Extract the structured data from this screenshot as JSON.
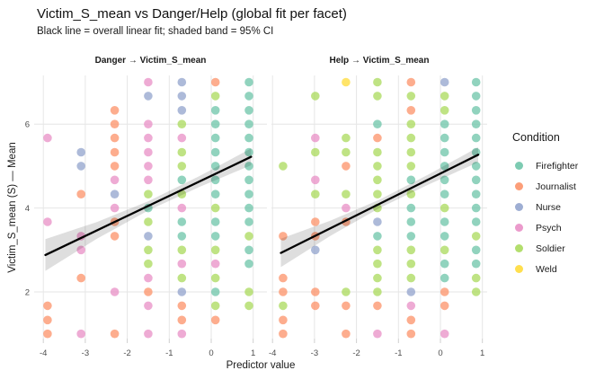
{
  "title": "Victim_S_mean vs Danger/Help (global fit per facet)",
  "subtitle": "Black line = overall linear fit; shaded band = 95% CI",
  "chart_data": {
    "type": "scatter",
    "xlabel": "Predictor value",
    "ylabel": "Victim_S_mean (S) — Mean",
    "x_ticks": [
      -4,
      -3,
      -2,
      -1,
      0,
      1
    ],
    "y_ticks": [
      2,
      4,
      6
    ],
    "xlim": [
      -4.22,
      1.33
    ],
    "ylim": [
      0.89,
      7.16
    ],
    "grid": "major-only",
    "point_opacity": 0.72,
    "point_radius": 4.8,
    "fit_color": "#000000",
    "band_color": "#000000",
    "band_opacity": 0.13,
    "grid_color": "#e6e6e6",
    "tick_label_color": "#4d4d4d",
    "condition_codes": {
      "F": "Firefighter",
      "J": "Journalist",
      "N": "Nurse",
      "P": "Psych",
      "S": "Soldier",
      "W": "Weld"
    },
    "palette": {
      "F": "#66C2A5",
      "J": "#FC8D62",
      "N": "#8DA0CB",
      "P": "#E78AC3",
      "S": "#A6D854",
      "W": "#FFD92F"
    },
    "legend": {
      "title": "Condition",
      "position": "right",
      "items": [
        {
          "label": "Firefighter",
          "color": "#66C2A5"
        },
        {
          "label": "Journalist",
          "color": "#FC8D62"
        },
        {
          "label": "Nurse",
          "color": "#8DA0CB"
        },
        {
          "label": "Psych",
          "color": "#E78AC3"
        },
        {
          "label": "Soldier",
          "color": "#A6D854"
        },
        {
          "label": "Weld",
          "color": "#FFD92F"
        }
      ]
    },
    "facets": [
      {
        "label": "Danger → Victim_S_mean",
        "fit_line": {
          "x1": -3.95,
          "y1": 2.88,
          "x2": 0.95,
          "y2": 5.22
        },
        "ci_halfwidths": {
          "fractions": [
            0,
            0.25,
            0.5,
            0.75,
            1
          ],
          "values": [
            0.38,
            0.2,
            0.11,
            0.13,
            0.2
          ]
        },
        "points": [
          [
            -3.9,
            5.67,
            "P"
          ],
          [
            -3.9,
            3.67,
            "P"
          ],
          [
            -3.9,
            1.67,
            "J"
          ],
          [
            -3.9,
            1.33,
            "J"
          ],
          [
            -3.9,
            1.0,
            "J"
          ],
          [
            -3.1,
            5.33,
            "N"
          ],
          [
            -3.1,
            5.0,
            "N"
          ],
          [
            -3.1,
            4.33,
            "J"
          ],
          [
            -3.1,
            3.33,
            "P"
          ],
          [
            -3.1,
            3.0,
            "P"
          ],
          [
            -3.1,
            2.33,
            "J"
          ],
          [
            -3.1,
            1.0,
            "P"
          ],
          [
            -2.3,
            6.33,
            "J"
          ],
          [
            -2.3,
            6.0,
            "J"
          ],
          [
            -2.3,
            5.67,
            "J"
          ],
          [
            -2.3,
            5.33,
            "J"
          ],
          [
            -2.3,
            5.0,
            "J"
          ],
          [
            -2.3,
            4.67,
            "P"
          ],
          [
            -2.3,
            4.33,
            "N"
          ],
          [
            -2.3,
            4.0,
            "P"
          ],
          [
            -2.3,
            3.67,
            "J"
          ],
          [
            -2.3,
            3.33,
            "J"
          ],
          [
            -2.3,
            2.0,
            "P"
          ],
          [
            -2.3,
            1.0,
            "J"
          ],
          [
            -1.5,
            7.0,
            "P"
          ],
          [
            -1.5,
            6.67,
            "N"
          ],
          [
            -1.5,
            6.0,
            "P"
          ],
          [
            -1.5,
            5.67,
            "P"
          ],
          [
            -1.5,
            5.33,
            "P"
          ],
          [
            -1.5,
            5.0,
            "P"
          ],
          [
            -1.5,
            4.67,
            "P"
          ],
          [
            -1.5,
            4.33,
            "S"
          ],
          [
            -1.5,
            4.0,
            "F"
          ],
          [
            -1.5,
            3.67,
            "S"
          ],
          [
            -1.5,
            3.33,
            "N"
          ],
          [
            -1.5,
            3.0,
            "S"
          ],
          [
            -1.5,
            2.67,
            "S"
          ],
          [
            -1.5,
            2.33,
            "P"
          ],
          [
            -1.5,
            2.0,
            "J"
          ],
          [
            -1.5,
            1.67,
            "P"
          ],
          [
            -1.5,
            1.0,
            "P"
          ],
          [
            -0.7,
            7.0,
            "N"
          ],
          [
            -0.7,
            6.67,
            "N"
          ],
          [
            -0.7,
            6.33,
            "N"
          ],
          [
            -0.7,
            6.0,
            "S"
          ],
          [
            -0.7,
            5.67,
            "P"
          ],
          [
            -0.7,
            5.33,
            "S"
          ],
          [
            -0.7,
            5.0,
            "S"
          ],
          [
            -0.7,
            4.67,
            "F"
          ],
          [
            -0.7,
            4.33,
            "S"
          ],
          [
            -0.7,
            4.0,
            "P"
          ],
          [
            -0.7,
            3.67,
            "F"
          ],
          [
            -0.7,
            3.33,
            "F"
          ],
          [
            -0.7,
            3.0,
            "S"
          ],
          [
            -0.7,
            2.67,
            "P"
          ],
          [
            -0.7,
            2.33,
            "S"
          ],
          [
            -0.7,
            2.0,
            "N"
          ],
          [
            -0.7,
            1.67,
            "J"
          ],
          [
            -0.7,
            1.33,
            "J"
          ],
          [
            -0.7,
            1.0,
            "P"
          ],
          [
            0.1,
            7.0,
            "J"
          ],
          [
            0.1,
            6.67,
            "S"
          ],
          [
            0.1,
            6.33,
            "F"
          ],
          [
            0.1,
            6.0,
            "F"
          ],
          [
            0.1,
            5.67,
            "F"
          ],
          [
            0.1,
            5.33,
            "F"
          ],
          [
            0.1,
            5.0,
            "F"
          ],
          [
            0.1,
            4.67,
            "F"
          ],
          [
            0.1,
            4.33,
            "F"
          ],
          [
            0.1,
            4.0,
            "S"
          ],
          [
            0.1,
            3.67,
            "F"
          ],
          [
            0.1,
            3.33,
            "F"
          ],
          [
            0.1,
            3.0,
            "S"
          ],
          [
            0.1,
            2.67,
            "P"
          ],
          [
            0.1,
            2.33,
            "S"
          ],
          [
            0.1,
            2.0,
            "F"
          ],
          [
            0.1,
            1.67,
            "S"
          ],
          [
            0.1,
            1.33,
            "J"
          ],
          [
            0.9,
            7.0,
            "F"
          ],
          [
            0.9,
            6.67,
            "F"
          ],
          [
            0.9,
            6.33,
            "F"
          ],
          [
            0.9,
            6.0,
            "F"
          ],
          [
            0.9,
            5.67,
            "F"
          ],
          [
            0.9,
            5.33,
            "F"
          ],
          [
            0.9,
            5.0,
            "F"
          ],
          [
            0.9,
            4.67,
            "F"
          ],
          [
            0.9,
            4.33,
            "F"
          ],
          [
            0.9,
            4.0,
            "F"
          ],
          [
            0.9,
            3.67,
            "F"
          ],
          [
            0.9,
            3.33,
            "S"
          ],
          [
            0.9,
            3.0,
            "F"
          ],
          [
            0.9,
            2.67,
            "F"
          ],
          [
            0.9,
            2.0,
            "S"
          ],
          [
            0.9,
            1.67,
            "S"
          ]
        ]
      },
      {
        "label": "Help → Victim_S_mean",
        "fit_line": {
          "x1": -3.8,
          "y1": 2.93,
          "x2": 0.9,
          "y2": 5.27
        },
        "ci_halfwidths": {
          "fractions": [
            0,
            0.25,
            0.5,
            0.75,
            1
          ],
          "values": [
            0.34,
            0.18,
            0.1,
            0.12,
            0.18
          ]
        },
        "points": [
          [
            -3.75,
            5.0,
            "S"
          ],
          [
            -3.75,
            3.33,
            "J"
          ],
          [
            -3.75,
            2.33,
            "J"
          ],
          [
            -3.75,
            2.0,
            "J"
          ],
          [
            -3.75,
            1.67,
            "S"
          ],
          [
            -3.75,
            1.33,
            "J"
          ],
          [
            -3.75,
            1.0,
            "J"
          ],
          [
            -2.98,
            6.67,
            "S"
          ],
          [
            -2.98,
            5.67,
            "P"
          ],
          [
            -2.98,
            5.33,
            "S"
          ],
          [
            -2.98,
            4.67,
            "P"
          ],
          [
            -2.98,
            4.33,
            "S"
          ],
          [
            -2.98,
            3.67,
            "J"
          ],
          [
            -2.98,
            3.33,
            "J"
          ],
          [
            -2.98,
            3.0,
            "N"
          ],
          [
            -2.98,
            2.0,
            "J"
          ],
          [
            -2.98,
            1.67,
            "J"
          ],
          [
            -2.25,
            7.0,
            "W"
          ],
          [
            -2.25,
            5.67,
            "S"
          ],
          [
            -2.25,
            5.33,
            "S"
          ],
          [
            -2.25,
            5.0,
            "J"
          ],
          [
            -2.25,
            4.33,
            "S"
          ],
          [
            -2.25,
            4.0,
            "P"
          ],
          [
            -2.25,
            3.67,
            "J"
          ],
          [
            -2.25,
            2.0,
            "S"
          ],
          [
            -2.25,
            1.67,
            "J"
          ],
          [
            -2.25,
            1.0,
            "J"
          ],
          [
            -1.5,
            7.0,
            "S"
          ],
          [
            -1.5,
            6.67,
            "S"
          ],
          [
            -1.5,
            6.0,
            "F"
          ],
          [
            -1.5,
            5.67,
            "J"
          ],
          [
            -1.5,
            5.33,
            "S"
          ],
          [
            -1.5,
            5.0,
            "S"
          ],
          [
            -1.5,
            4.67,
            "S"
          ],
          [
            -1.5,
            4.33,
            "S"
          ],
          [
            -1.5,
            4.0,
            "S"
          ],
          [
            -1.5,
            3.67,
            "N"
          ],
          [
            -1.5,
            3.33,
            "F"
          ],
          [
            -1.5,
            3.0,
            "S"
          ],
          [
            -1.5,
            2.67,
            "S"
          ],
          [
            -1.5,
            2.33,
            "S"
          ],
          [
            -1.5,
            2.0,
            "S"
          ],
          [
            -1.5,
            1.67,
            "J"
          ],
          [
            -1.5,
            1.0,
            "P"
          ],
          [
            -0.7,
            7.0,
            "J"
          ],
          [
            -0.7,
            6.67,
            "S"
          ],
          [
            -0.7,
            6.33,
            "J"
          ],
          [
            -0.7,
            6.0,
            "S"
          ],
          [
            -0.7,
            5.67,
            "S"
          ],
          [
            -0.7,
            5.33,
            "S"
          ],
          [
            -0.7,
            5.0,
            "S"
          ],
          [
            -0.7,
            4.67,
            "F"
          ],
          [
            -0.7,
            4.33,
            "S"
          ],
          [
            -0.7,
            4.0,
            "F"
          ],
          [
            -0.7,
            3.67,
            "F"
          ],
          [
            -0.7,
            3.33,
            "F"
          ],
          [
            -0.7,
            3.0,
            "S"
          ],
          [
            -0.7,
            2.67,
            "S"
          ],
          [
            -0.7,
            2.33,
            "S"
          ],
          [
            -0.7,
            2.0,
            "N"
          ],
          [
            -0.7,
            1.67,
            "P"
          ],
          [
            -0.7,
            1.33,
            "J"
          ],
          [
            -0.7,
            1.0,
            "J"
          ],
          [
            0.1,
            7.0,
            "N"
          ],
          [
            0.1,
            6.67,
            "S"
          ],
          [
            0.1,
            6.33,
            "S"
          ],
          [
            0.1,
            6.0,
            "F"
          ],
          [
            0.1,
            5.67,
            "F"
          ],
          [
            0.1,
            5.33,
            "F"
          ],
          [
            0.1,
            5.0,
            "F"
          ],
          [
            0.1,
            4.67,
            "F"
          ],
          [
            0.1,
            4.33,
            "F"
          ],
          [
            0.1,
            4.0,
            "S"
          ],
          [
            0.1,
            3.67,
            "F"
          ],
          [
            0.1,
            3.33,
            "F"
          ],
          [
            0.1,
            3.0,
            "S"
          ],
          [
            0.1,
            2.67,
            "F"
          ],
          [
            0.1,
            2.33,
            "F"
          ],
          [
            0.1,
            2.0,
            "J"
          ],
          [
            0.1,
            1.67,
            "J"
          ],
          [
            0.1,
            1.0,
            "P"
          ],
          [
            0.85,
            7.0,
            "F"
          ],
          [
            0.85,
            6.67,
            "F"
          ],
          [
            0.85,
            6.33,
            "F"
          ],
          [
            0.85,
            6.0,
            "F"
          ],
          [
            0.85,
            5.67,
            "F"
          ],
          [
            0.85,
            5.33,
            "F"
          ],
          [
            0.85,
            5.0,
            "F"
          ],
          [
            0.85,
            4.67,
            "F"
          ],
          [
            0.85,
            4.33,
            "F"
          ],
          [
            0.85,
            4.0,
            "F"
          ],
          [
            0.85,
            3.67,
            "F"
          ],
          [
            0.85,
            3.33,
            "S"
          ],
          [
            0.85,
            3.0,
            "F"
          ],
          [
            0.85,
            2.67,
            "F"
          ],
          [
            0.85,
            2.33,
            "S"
          ],
          [
            0.85,
            2.0,
            "S"
          ]
        ]
      }
    ]
  }
}
